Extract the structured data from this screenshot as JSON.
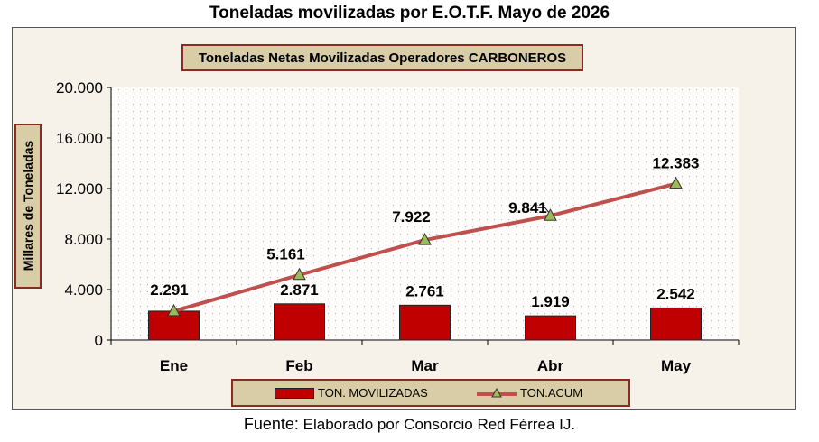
{
  "page": {
    "title": "Toneladas movilizadas por E.O.T.F.  Mayo de 2026",
    "source_label": "Fuente:",
    "source_text": " Elaborado por Consorcio Red Férrea IJ."
  },
  "chart_data": {
    "type": "bar",
    "title": "Toneladas Netas Movilizadas Operadores CARBONEROS",
    "ylabel": "Millares de Toneladas",
    "xlabel": "",
    "categories": [
      "Ene",
      "Feb",
      "Mar",
      "Abr",
      "May"
    ],
    "ylim": [
      0,
      20000
    ],
    "yticks": [
      0,
      4000,
      8000,
      12000,
      16000,
      20000
    ],
    "ytick_labels": [
      "0",
      "4.000",
      "8.000",
      "12.000",
      "16.000",
      "20.000"
    ],
    "grid": false,
    "legend_position": "bottom",
    "series": [
      {
        "name": "TON. MOVILIZADAS",
        "type": "bar",
        "color": "#c00000",
        "values": [
          2291,
          2871,
          2761,
          1919,
          2542
        ],
        "labels": [
          "2.291",
          "2.871",
          "2.761",
          "1.919",
          "2.542"
        ]
      },
      {
        "name": "TON.ACUM",
        "type": "line",
        "color": "#c0504d",
        "marker": "triangle",
        "marker_color": "#9bbb59",
        "values": [
          2291,
          5161,
          7922,
          9841,
          12383
        ],
        "labels": [
          "",
          "5.161",
          "7.922",
          "9.841",
          "12.383"
        ]
      }
    ]
  }
}
